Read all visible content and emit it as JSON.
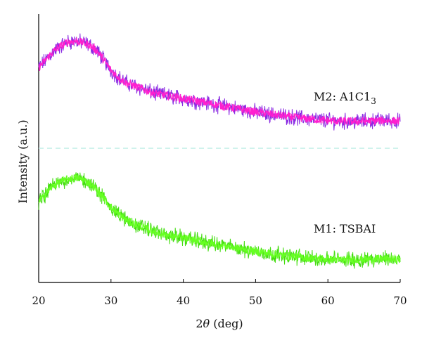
{
  "chart_data": {
    "type": "line",
    "xlabel_prefix": "2",
    "xlabel_theta": "θ",
    "xlabel_suffix": " (deg)",
    "ylabel": "Intensity (a.u.)",
    "xlim": [
      20,
      70
    ],
    "x_ticks": [
      "20",
      "30",
      "40",
      "50",
      "60",
      "70"
    ],
    "ylim": [
      0,
      1
    ],
    "grid": false,
    "separator_y": 0.5,
    "series": [
      {
        "name": "M2: A1C1",
        "name_sub": "3",
        "color": "#ff1fcf",
        "noise_color": "#8a2be2",
        "x": [
          20,
          21,
          22,
          23,
          24,
          25,
          26,
          27,
          28,
          29,
          30,
          31,
          32,
          33,
          34,
          35,
          36,
          37,
          38,
          39,
          40,
          42,
          44,
          46,
          48,
          50,
          52,
          54,
          56,
          58,
          60,
          62,
          64,
          66,
          68,
          70
        ],
        "y": [
          0.8,
          0.83,
          0.86,
          0.88,
          0.895,
          0.9,
          0.895,
          0.885,
          0.865,
          0.83,
          0.79,
          0.765,
          0.745,
          0.735,
          0.725,
          0.715,
          0.705,
          0.7,
          0.695,
          0.69,
          0.685,
          0.675,
          0.665,
          0.655,
          0.645,
          0.635,
          0.627,
          0.62,
          0.613,
          0.608,
          0.603,
          0.6,
          0.6,
          0.602,
          0.604,
          0.6
        ]
      },
      {
        "name": "M1: TSBAI",
        "color": "#66ff22",
        "noise_color": "#44dd11",
        "x": [
          20,
          21,
          22,
          23,
          24,
          25,
          26,
          27,
          28,
          29,
          30,
          31,
          32,
          33,
          34,
          35,
          36,
          37,
          38,
          39,
          40,
          42,
          44,
          46,
          48,
          50,
          52,
          54,
          56,
          58,
          60,
          62,
          64,
          66,
          68,
          70
        ],
        "y": [
          0.3,
          0.33,
          0.36,
          0.375,
          0.385,
          0.39,
          0.385,
          0.37,
          0.345,
          0.315,
          0.28,
          0.255,
          0.235,
          0.22,
          0.21,
          0.2,
          0.19,
          0.182,
          0.175,
          0.17,
          0.165,
          0.155,
          0.145,
          0.135,
          0.125,
          0.115,
          0.108,
          0.1,
          0.095,
          0.09,
          0.087,
          0.085,
          0.085,
          0.087,
          0.088,
          0.085
        ]
      }
    ]
  }
}
